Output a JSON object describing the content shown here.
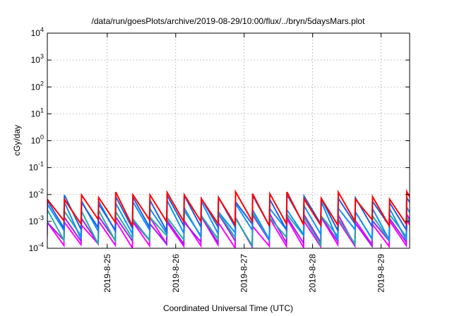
{
  "chart_data": {
    "type": "line",
    "title": "/data/run/goesPlots/archive/2019-08-29/10:00/flux/../bryn/5daysMars.plot",
    "ylabel": "cGy/day",
    "xlabel": "Coordinated Universal Time (UTC)",
    "y_scale": "log",
    "ylim": [
      0.0001,
      10000
    ],
    "xlim": [
      "2019-08-24 03:00",
      "2019-08-29 10:00"
    ],
    "grid": true,
    "legend": "none",
    "y_ticks": [
      {
        "value": 0.0001,
        "base": "10",
        "exp": "-4"
      },
      {
        "value": 0.001,
        "base": "10",
        "exp": "-3"
      },
      {
        "value": 0.01,
        "base": "10",
        "exp": "-2"
      },
      {
        "value": 0.1,
        "base": "10",
        "exp": "-1"
      },
      {
        "value": 1,
        "base": "10",
        "exp": "0"
      },
      {
        "value": 10,
        "base": "10",
        "exp": "1"
      },
      {
        "value": 100,
        "base": "10",
        "exp": "2"
      },
      {
        "value": 1000,
        "base": "10",
        "exp": "3"
      },
      {
        "value": 10000,
        "base": "10",
        "exp": "4"
      }
    ],
    "x_ticks": [
      {
        "value": "2019-08-25 00:00",
        "label": "2019-8-25"
      },
      {
        "value": "2019-08-26 00:00",
        "label": "2019-8-26"
      },
      {
        "value": "2019-08-27 00:00",
        "label": "2019-8-27"
      },
      {
        "value": "2019-08-28 00:00",
        "label": "2019-8-28"
      },
      {
        "value": "2019-08-29 00:00",
        "label": "2019-8-29"
      }
    ],
    "series": [
      {
        "color": "#ff0000",
        "peak_range": [
          0.006,
          0.014
        ],
        "trough_range": [
          0.0006,
          0.0012
        ]
      },
      {
        "color": "#2060e0",
        "peak_range": [
          0.004,
          0.01
        ],
        "trough_range": [
          0.0004,
          0.0009
        ]
      },
      {
        "color": "#1090ff",
        "peak_range": [
          0.002,
          0.006
        ],
        "trough_range": [
          0.0002,
          0.0005
        ]
      },
      {
        "color": "#20b0a0",
        "peak_range": [
          0.0012,
          0.003
        ],
        "trough_range": [
          0.00012,
          0.0003
        ]
      },
      {
        "color": "#a020f0",
        "peak_range": [
          0.0008,
          0.002
        ],
        "trough_range": [
          0.0001,
          0.0002
        ]
      },
      {
        "color": "#ff00ff",
        "peak_range": [
          0.0006,
          0.0015
        ],
        "trough_range": [
          0.0001,
          0.00015
        ]
      }
    ],
    "cycle_hours": 6
  }
}
